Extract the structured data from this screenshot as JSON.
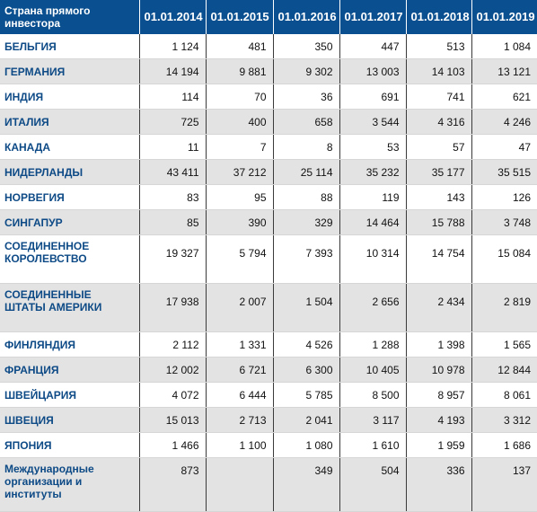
{
  "table": {
    "header": {
      "country_label": "Страна прямого инвестора",
      "years": [
        "01.01.2014",
        "01.01.2015",
        "01.01.2016",
        "01.01.2017",
        "01.01.2018",
        "01.01.2019"
      ]
    },
    "rows": [
      {
        "country": "БЕЛЬГИЯ",
        "values": [
          "1 124",
          "481",
          "350",
          "447",
          "513",
          "1 084"
        ]
      },
      {
        "country": "ГЕРМАНИЯ",
        "values": [
          "14 194",
          "9 881",
          "9 302",
          "13 003",
          "14 103",
          "13 121"
        ]
      },
      {
        "country": "ИНДИЯ",
        "values": [
          "114",
          "70",
          "36",
          "691",
          "741",
          "621"
        ]
      },
      {
        "country": "ИТАЛИЯ",
        "values": [
          "725",
          "400",
          "658",
          "3 544",
          "4 316",
          "4 246"
        ]
      },
      {
        "country": "КАНАДА",
        "values": [
          "11",
          "7",
          "8",
          "53",
          "57",
          "47"
        ]
      },
      {
        "country": "НИДЕРЛАНДЫ",
        "values": [
          "43 411",
          "37 212",
          "25 114",
          "35 232",
          "35 177",
          "35 515"
        ]
      },
      {
        "country": "НОРВЕГИЯ",
        "values": [
          "83",
          "95",
          "88",
          "119",
          "143",
          "126"
        ]
      },
      {
        "country": "СИНГАПУР",
        "values": [
          "85",
          "390",
          "329",
          "14 464",
          "15 788",
          "3 748"
        ]
      },
      {
        "country": "СОЕДИНЕННОЕ КОРОЛЕВСТВО",
        "values": [
          "19 327",
          "5 794",
          "7 393",
          "10 314",
          "14 754",
          "15 084"
        ]
      },
      {
        "country": "СОЕДИНЕННЫЕ ШТАТЫ АМЕРИКИ",
        "values": [
          "17 938",
          "2 007",
          "1 504",
          "2 656",
          "2 434",
          "2 819"
        ]
      },
      {
        "country": "ФИНЛЯНДИЯ",
        "values": [
          "2 112",
          "1 331",
          "4 526",
          "1 288",
          "1 398",
          "1 565"
        ]
      },
      {
        "country": "ФРАНЦИЯ",
        "values": [
          "12 002",
          "6 721",
          "6 300",
          "10 405",
          "10 978",
          "12 844"
        ]
      },
      {
        "country": "ШВЕЙЦАРИЯ",
        "values": [
          "4 072",
          "6 444",
          "5 785",
          "8 500",
          "8 957",
          "8 061"
        ]
      },
      {
        "country": "ШВЕЦИЯ",
        "values": [
          "15 013",
          "2 713",
          "2 041",
          "3 117",
          "4 193",
          "3 312"
        ]
      },
      {
        "country": "ЯПОНИЯ",
        "values": [
          "1 466",
          "1 100",
          "1 080",
          "1 610",
          "1 959",
          "1 686"
        ]
      },
      {
        "country": "Международные организации и институты",
        "values": [
          "873",
          "",
          "349",
          "504",
          "336",
          "137"
        ]
      }
    ]
  }
}
